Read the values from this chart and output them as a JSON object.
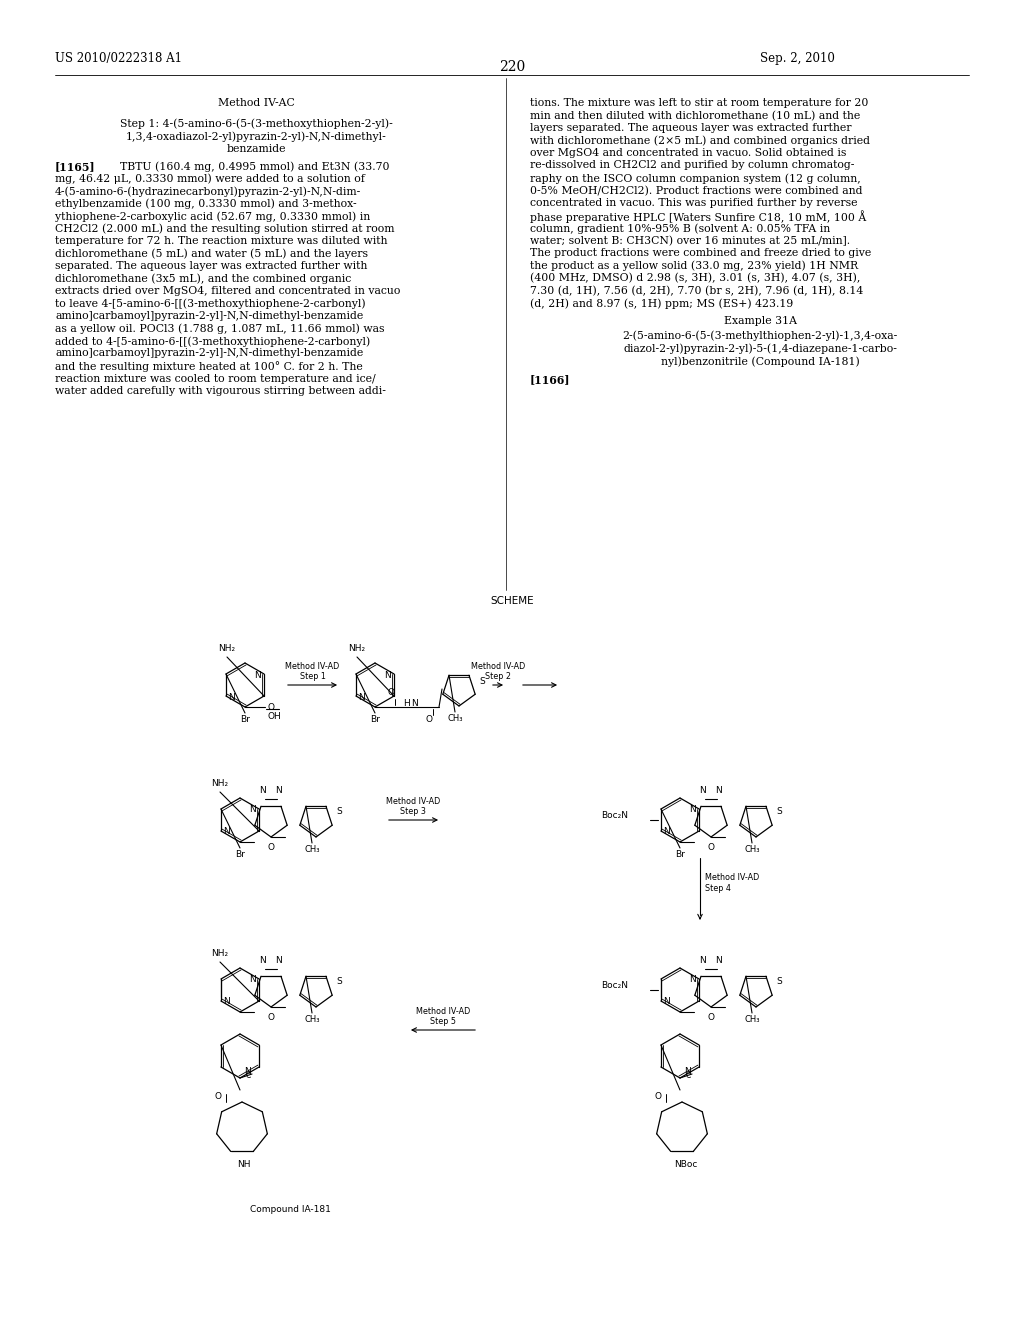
{
  "background_color": "#ffffff",
  "header": {
    "left_text": "US 2010/0222318 A1",
    "right_text": "Sep. 2, 2010",
    "page_number": "220"
  },
  "left_col": {
    "title": "Method IV-AC",
    "step_title": "Step 1: 4-(5-amino-6-(5-(3-methoxythiophen-2-yl)-\n1,3,4-oxadiazol-2-yl)pyrazin-2-yl)-N,N-dimethyl-\nbenzamide",
    "tag": "[1165]",
    "body": "TBTU (160.4 mg, 0.4995 mmol) and Et3N (33.70\nmg, 46.42 μL, 0.3330 mmol) were added to a solution of\n4-(5-amino-6-(hydrazinecarbonyl)pyrazin-2-yl)-N,N-dim-\nethylbenzamide (100 mg, 0.3330 mmol) and 3-methox-\nythiophene-2-carboxylic acid (52.67 mg, 0.3330 mmol) in\nCH2Cl2 (2.000 mL) and the resulting solution stirred at room\ntemperature for 72 h. The reaction mixture was diluted with\ndichloromethane (5 mL) and water (5 mL) and the layers\nseparated. The aqueous layer was extracted further with\ndichloromethane (3x5 mL), and the combined organic\nextracts dried over MgSO4, filtered and concentrated in vacuo\nto leave 4-[5-amino-6-[[(3-methoxythiophene-2-carbonyl)\namino]carbamoyl]pyrazin-2-yl]-N,N-dimethyl-benzamide\nas a yellow oil. POCl3 (1.788 g, 1.087 mL, 11.66 mmol) was\nadded to 4-[5-amino-6-[[(3-methoxythiophene-2-carbonyl)\namino]carbamoyl]pyrazin-2-yl]-N,N-dimethyl-benzamide\nand the resulting mixture heated at 100° C. for 2 h. The\nreaction mixture was cooled to room temperature and ice/\nwater added carefully with vigourous stirring between addi-"
  },
  "right_col": {
    "body": "tions. The mixture was left to stir at room temperature for 20\nmin and then diluted with dichloromethane (10 mL) and the\nlayers separated. The aqueous layer was extracted further\nwith dichloromethane (2×5 mL) and combined organics dried\nover MgSO4 and concentrated in vacuo. Solid obtained is\nre-dissolved in CH2Cl2 and purified by column chromatog-\nraphy on the ISCO column companion system (12 g column,\n0-5% MeOH/CH2Cl2). Product fractions were combined and\nconcentrated in vacuo. This was purified further by reverse\nphase preparative HPLC [Waters Sunfire C18, 10 mM, 100 Å\ncolumn, gradient 10%-95% B (solvent A: 0.05% TFA in\nwater; solvent B: CH3CN) over 16 minutes at 25 mL/min].\nThe product fractions were combined and freeze dried to give\nthe product as a yellow solid (33.0 mg, 23% yield) 1H NMR\n(400 MHz, DMSO) d 2.98 (s, 3H), 3.01 (s, 3H), 4.07 (s, 3H),\n7.30 (d, 1H), 7.56 (d, 2H), 7.70 (br s, 2H), 7.96 (d, 1H), 8.14\n(d, 2H) and 8.97 (s, 1H) ppm; MS (ES+) 423.19",
    "example_title": "Example 31A",
    "example_body": "2-(5-amino-6-(5-(3-methylthiophen-2-yl)-1,3,4-oxa-\ndiazol-2-yl)pyrazin-2-yl)-5-(1,4-diazepane-1-carbo-\nnyl)benzonitrile (Compound IA-181)",
    "tag2": "[1166]"
  },
  "scheme_label": "SCHEME",
  "compound_label": "Compound IA-181"
}
